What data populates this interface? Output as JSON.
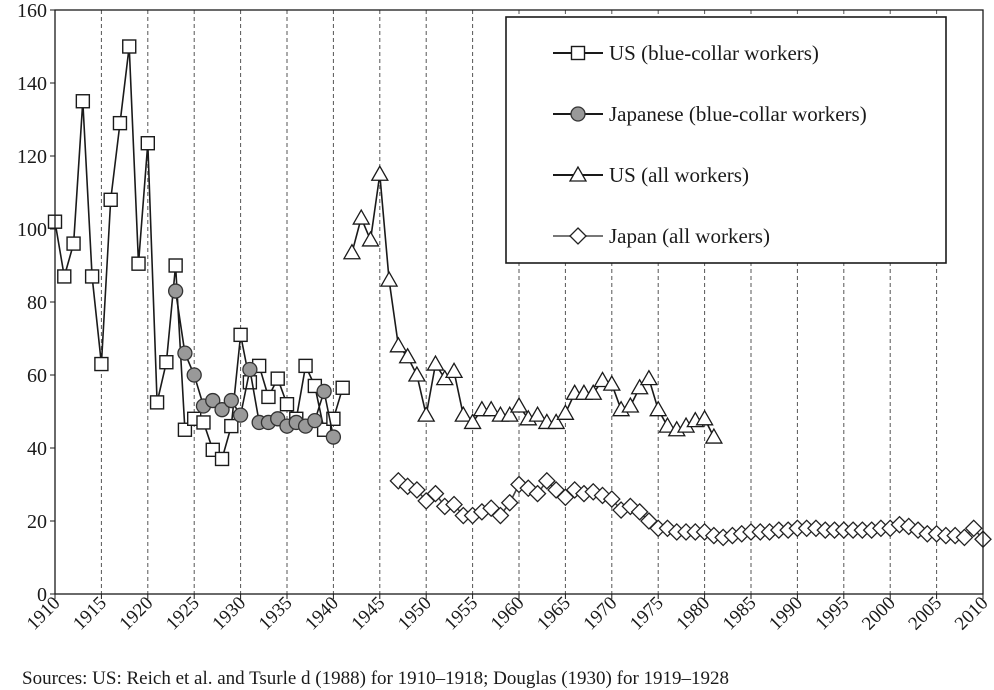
{
  "chart_data": {
    "type": "line",
    "title": "",
    "xlabel": "",
    "ylabel": "",
    "xlim": [
      1910,
      2010
    ],
    "ylim": [
      0,
      160
    ],
    "y_ticks": [
      0,
      20,
      40,
      60,
      80,
      100,
      120,
      140,
      160
    ],
    "x_ticks": [
      1910,
      1915,
      1920,
      1925,
      1930,
      1935,
      1940,
      1945,
      1950,
      1955,
      1960,
      1965,
      1970,
      1975,
      1980,
      1985,
      1990,
      1995,
      2000,
      2005,
      2010
    ],
    "grid": "vertical dashed",
    "legend_position": "top-right",
    "series": [
      {
        "name": "US (blue-collar workers)",
        "marker": "square",
        "color": "#1a1a1a",
        "x": [
          1910,
          1911,
          1912,
          1913,
          1914,
          1915,
          1916,
          1917,
          1918,
          1919,
          1920,
          1921,
          1922,
          1923,
          1924,
          1925,
          1926,
          1927,
          1928,
          1929,
          1930,
          1931,
          1932,
          1933,
          1934,
          1935,
          1936,
          1937,
          1938,
          1939,
          1940,
          1941
        ],
        "y": [
          102,
          87,
          96,
          135,
          87,
          63,
          108,
          129,
          150,
          90.5,
          123.5,
          52.5,
          63.5,
          90,
          45,
          48,
          47,
          39.5,
          37,
          46,
          71,
          58,
          62.5,
          54,
          59,
          52,
          48,
          62.5,
          57,
          45,
          48,
          56.5
        ]
      },
      {
        "name": "Japanese (blue-collar workers)",
        "marker": "circle",
        "color": "#1a1a1a",
        "x": [
          1923,
          1924,
          1925,
          1926,
          1927,
          1928,
          1929,
          1930,
          1931,
          1932,
          1933,
          1934,
          1935,
          1936,
          1937,
          1938,
          1939,
          1940
        ],
        "y": [
          83,
          66,
          60,
          51.5,
          53,
          50.5,
          53,
          49,
          61.5,
          47,
          47,
          48,
          46,
          47,
          46,
          47.5,
          55.5,
          43
        ]
      },
      {
        "name": "US (all workers)",
        "marker": "triangle",
        "color": "#1a1a1a",
        "x": [
          1942,
          1943,
          1944,
          1945,
          1946,
          1947,
          1948,
          1949,
          1950,
          1951,
          1952,
          1953,
          1954,
          1955,
          1956,
          1957,
          1958,
          1959,
          1960,
          1961,
          1962,
          1963,
          1964,
          1965,
          1966,
          1967,
          1968,
          1969,
          1970,
          1971,
          1972,
          1973,
          1974,
          1975,
          1976,
          1977,
          1978,
          1979,
          1980,
          1981
        ],
        "y": [
          93.5,
          103,
          97,
          115,
          86,
          68,
          65,
          60,
          49,
          63,
          59,
          61,
          49,
          47,
          50.5,
          50.5,
          49,
          49,
          51.5,
          48,
          49,
          47,
          47,
          49.5,
          55,
          55,
          55,
          58.5,
          57.5,
          50.5,
          51.5,
          56.5,
          59,
          50.5,
          46,
          45,
          46,
          47.5,
          48,
          43
        ]
      },
      {
        "name": "Japan (all workers)",
        "marker": "diamond",
        "color": "#444444",
        "x": [
          1947,
          1948,
          1949,
          1950,
          1951,
          1952,
          1953,
          1954,
          1955,
          1956,
          1957,
          1958,
          1959,
          1960,
          1961,
          1962,
          1963,
          1964,
          1965,
          1966,
          1967,
          1968,
          1969,
          1970,
          1971,
          1972,
          1973,
          1974,
          1975,
          1976,
          1977,
          1978,
          1979,
          1980,
          1981,
          1982,
          1983,
          1984,
          1985,
          1986,
          1987,
          1988,
          1989,
          1990,
          1991,
          1992,
          1993,
          1994,
          1995,
          1996,
          1997,
          1998,
          1999,
          2000,
          2001,
          2002,
          2003,
          2004,
          2005,
          2006,
          2007,
          2008,
          2009,
          2010
        ],
        "y": [
          31,
          29.5,
          28.5,
          25.5,
          27.5,
          24,
          24.5,
          21.5,
          21.5,
          22.5,
          23.5,
          21.5,
          25,
          30,
          29,
          27.5,
          31,
          28.5,
          26.5,
          28.5,
          27.5,
          28,
          27,
          26,
          23,
          24,
          22.5,
          20,
          18,
          18,
          17,
          17,
          17,
          17,
          16,
          15.5,
          16,
          16.5,
          17,
          17,
          17,
          17.5,
          17.5,
          18,
          18,
          18,
          17.5,
          17.5,
          17.5,
          17.5,
          17.5,
          17.5,
          18,
          18,
          19,
          18.5,
          17.5,
          16.5,
          16.5,
          16,
          16,
          15.5,
          18,
          15
        ]
      }
    ]
  },
  "source_note": "Sources: US: Reich et al. and Tsurle d (1988) for 1910–1918; Douglas (1930) for 1919–1928"
}
